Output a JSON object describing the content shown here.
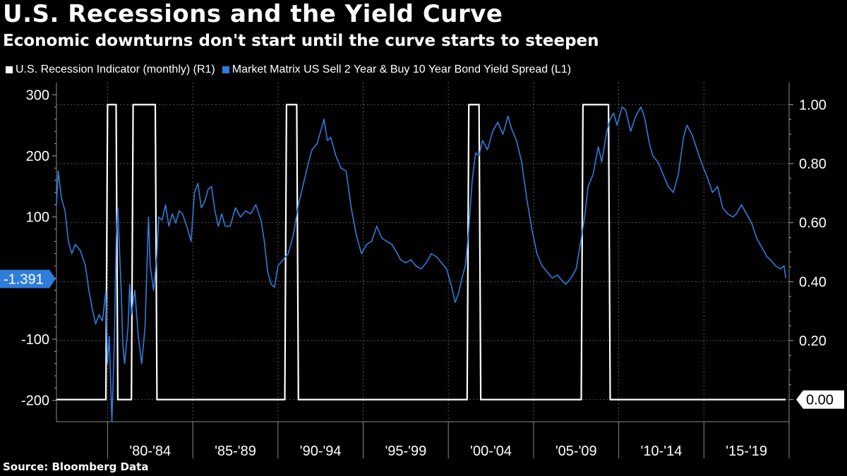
{
  "title": "U.S. Recessions and the Yield Curve",
  "subtitle": "Economic downturns don't start until the curve starts to steepen",
  "source": "Source: Bloomberg Data",
  "colors": {
    "background": "#000000",
    "recession": "#ffffff",
    "spread": "#2e7ddb",
    "grid": "#555555"
  },
  "legend": [
    {
      "label": "U.S. Recession Indicator (monthly)  (R1)",
      "color": "#ffffff"
    },
    {
      "label": "Market Matrix US Sell 2 Year & Buy 10 Year Bond Yield Spread  (L1)",
      "color": "#2e7ddb"
    }
  ],
  "chart_data": {
    "type": "line",
    "title": "U.S. Recessions and the Yield Curve",
    "x_categories": [
      "'80-'84",
      "'85-'89",
      "'90-'94",
      "'95-'99",
      "'00-'04",
      "'05-'09",
      "'10-'14",
      "'15-'19"
    ],
    "x_range": [
      1977.0,
      2020.0
    ],
    "left_axis": {
      "range": [
        -235,
        320
      ],
      "ticks": [
        -200,
        -100,
        100,
        200,
        300
      ]
    },
    "right_axis": {
      "range": [
        -0.075,
        1.075
      ],
      "ticks": [
        "0.00",
        "0.20",
        "0.40",
        "0.60",
        "0.80",
        "1.00"
      ]
    },
    "current_value_label": "-1.391",
    "right_end_label": "0.00",
    "series": [
      {
        "name": "U.S. Recession Indicator (monthly)",
        "axis": "right",
        "points": [
          [
            1977.0,
            0
          ],
          [
            1979.9,
            0
          ],
          [
            1980.0,
            1
          ],
          [
            1980.5,
            1
          ],
          [
            1980.6,
            0
          ],
          [
            1981.4,
            0
          ],
          [
            1981.5,
            1
          ],
          [
            1982.8,
            1
          ],
          [
            1982.9,
            0
          ],
          [
            1990.4,
            0
          ],
          [
            1990.5,
            1
          ],
          [
            1991.1,
            1
          ],
          [
            1991.2,
            0
          ],
          [
            2001.1,
            0
          ],
          [
            2001.2,
            1
          ],
          [
            2001.8,
            1
          ],
          [
            2001.9,
            0
          ],
          [
            2007.8,
            0
          ],
          [
            2007.9,
            1
          ],
          [
            2009.4,
            1
          ],
          [
            2009.5,
            0
          ],
          [
            2019.8,
            0
          ]
        ]
      },
      {
        "name": "Market Matrix US Sell 2 Year & Buy 10 Year Bond Yield Spread",
        "axis": "left",
        "points": [
          [
            1977.0,
            120
          ],
          [
            1977.1,
            175
          ],
          [
            1977.3,
            130
          ],
          [
            1977.5,
            110
          ],
          [
            1977.7,
            60
          ],
          [
            1977.9,
            40
          ],
          [
            1978.1,
            55
          ],
          [
            1978.4,
            45
          ],
          [
            1978.7,
            20
          ],
          [
            1978.9,
            -20
          ],
          [
            1979.1,
            -50
          ],
          [
            1979.3,
            -75
          ],
          [
            1979.5,
            -60
          ],
          [
            1979.7,
            -70
          ],
          [
            1979.9,
            -20
          ],
          [
            1980.0,
            -140
          ],
          [
            1980.1,
            -95
          ],
          [
            1980.25,
            -235
          ],
          [
            1980.4,
            -100
          ],
          [
            1980.5,
            60
          ],
          [
            1980.6,
            115
          ],
          [
            1980.8,
            -20
          ],
          [
            1980.9,
            -110
          ],
          [
            1981.0,
            -140
          ],
          [
            1981.2,
            -80
          ],
          [
            1981.3,
            -10
          ],
          [
            1981.4,
            -60
          ],
          [
            1981.6,
            -20
          ],
          [
            1981.8,
            -95
          ],
          [
            1982.0,
            -140
          ],
          [
            1982.2,
            -80
          ],
          [
            1982.4,
            100
          ],
          [
            1982.5,
            20
          ],
          [
            1982.7,
            -20
          ],
          [
            1982.9,
            40
          ],
          [
            1983.0,
            100
          ],
          [
            1983.2,
            95
          ],
          [
            1983.4,
            120
          ],
          [
            1983.6,
            85
          ],
          [
            1983.8,
            105
          ],
          [
            1984.0,
            90
          ],
          [
            1984.2,
            110
          ],
          [
            1984.4,
            105
          ],
          [
            1984.7,
            80
          ],
          [
            1984.9,
            60
          ],
          [
            1985.1,
            140
          ],
          [
            1985.3,
            155
          ],
          [
            1985.5,
            115
          ],
          [
            1985.7,
            125
          ],
          [
            1985.9,
            145
          ],
          [
            1986.1,
            150
          ],
          [
            1986.3,
            110
          ],
          [
            1986.5,
            85
          ],
          [
            1986.7,
            105
          ],
          [
            1986.9,
            85
          ],
          [
            1987.2,
            85
          ],
          [
            1987.5,
            115
          ],
          [
            1987.8,
            100
          ],
          [
            1988.1,
            110
          ],
          [
            1988.4,
            105
          ],
          [
            1988.7,
            120
          ],
          [
            1989.0,
            95
          ],
          [
            1989.2,
            60
          ],
          [
            1989.4,
            10
          ],
          [
            1989.6,
            -10
          ],
          [
            1989.8,
            -15
          ],
          [
            1990.0,
            20
          ],
          [
            1990.3,
            30
          ],
          [
            1990.6,
            40
          ],
          [
            1990.9,
            70
          ],
          [
            1991.2,
            120
          ],
          [
            1991.5,
            155
          ],
          [
            1991.8,
            190
          ],
          [
            1992.0,
            210
          ],
          [
            1992.3,
            220
          ],
          [
            1992.5,
            240
          ],
          [
            1992.7,
            260
          ],
          [
            1992.9,
            225
          ],
          [
            1993.1,
            230
          ],
          [
            1993.4,
            200
          ],
          [
            1993.7,
            180
          ],
          [
            1994.0,
            175
          ],
          [
            1994.3,
            115
          ],
          [
            1994.6,
            70
          ],
          [
            1994.9,
            40
          ],
          [
            1995.2,
            55
          ],
          [
            1995.5,
            60
          ],
          [
            1995.8,
            85
          ],
          [
            1996.1,
            65
          ],
          [
            1996.4,
            60
          ],
          [
            1996.7,
            55
          ],
          [
            1996.9,
            45
          ],
          [
            1997.2,
            30
          ],
          [
            1997.5,
            25
          ],
          [
            1997.8,
            30
          ],
          [
            1998.1,
            20
          ],
          [
            1998.4,
            15
          ],
          [
            1998.7,
            25
          ],
          [
            1999.0,
            40
          ],
          [
            1999.3,
            35
          ],
          [
            1999.6,
            25
          ],
          [
            1999.9,
            15
          ],
          [
            2000.2,
            -15
          ],
          [
            2000.4,
            -40
          ],
          [
            2000.6,
            -25
          ],
          [
            2000.8,
            0
          ],
          [
            2001.0,
            20
          ],
          [
            2001.2,
            80
          ],
          [
            2001.4,
            160
          ],
          [
            2001.6,
            205
          ],
          [
            2001.8,
            200
          ],
          [
            2002.0,
            225
          ],
          [
            2002.3,
            210
          ],
          [
            2002.6,
            240
          ],
          [
            2002.9,
            255
          ],
          [
            2003.2,
            235
          ],
          [
            2003.5,
            265
          ],
          [
            2003.7,
            245
          ],
          [
            2004.0,
            225
          ],
          [
            2004.3,
            190
          ],
          [
            2004.6,
            130
          ],
          [
            2004.9,
            80
          ],
          [
            2005.2,
            40
          ],
          [
            2005.5,
            20
          ],
          [
            2005.8,
            10
          ],
          [
            2006.1,
            0
          ],
          [
            2006.4,
            5
          ],
          [
            2006.7,
            -5
          ],
          [
            2006.9,
            -10
          ],
          [
            2007.2,
            0
          ],
          [
            2007.5,
            15
          ],
          [
            2007.8,
            65
          ],
          [
            2008.0,
            100
          ],
          [
            2008.2,
            150
          ],
          [
            2008.5,
            170
          ],
          [
            2008.8,
            215
          ],
          [
            2009.0,
            190
          ],
          [
            2009.3,
            240
          ],
          [
            2009.5,
            260
          ],
          [
            2009.7,
            270
          ],
          [
            2009.9,
            250
          ],
          [
            2010.2,
            280
          ],
          [
            2010.4,
            275
          ],
          [
            2010.7,
            240
          ],
          [
            2011.0,
            265
          ],
          [
            2011.3,
            280
          ],
          [
            2011.5,
            265
          ],
          [
            2011.8,
            220
          ],
          [
            2012.0,
            200
          ],
          [
            2012.3,
            190
          ],
          [
            2012.6,
            170
          ],
          [
            2012.9,
            150
          ],
          [
            2013.2,
            140
          ],
          [
            2013.5,
            170
          ],
          [
            2013.8,
            230
          ],
          [
            2014.0,
            250
          ],
          [
            2014.3,
            235
          ],
          [
            2014.6,
            210
          ],
          [
            2014.9,
            185
          ],
          [
            2015.2,
            165
          ],
          [
            2015.5,
            140
          ],
          [
            2015.8,
            150
          ],
          [
            2016.1,
            115
          ],
          [
            2016.4,
            105
          ],
          [
            2016.7,
            100
          ],
          [
            2016.9,
            105
          ],
          [
            2017.2,
            120
          ],
          [
            2017.5,
            105
          ],
          [
            2017.8,
            90
          ],
          [
            2018.1,
            65
          ],
          [
            2018.4,
            50
          ],
          [
            2018.7,
            35
          ],
          [
            2018.9,
            30
          ],
          [
            2019.2,
            20
          ],
          [
            2019.5,
            15
          ],
          [
            2019.7,
            20
          ],
          [
            2019.8,
            0
          ]
        ]
      }
    ]
  }
}
